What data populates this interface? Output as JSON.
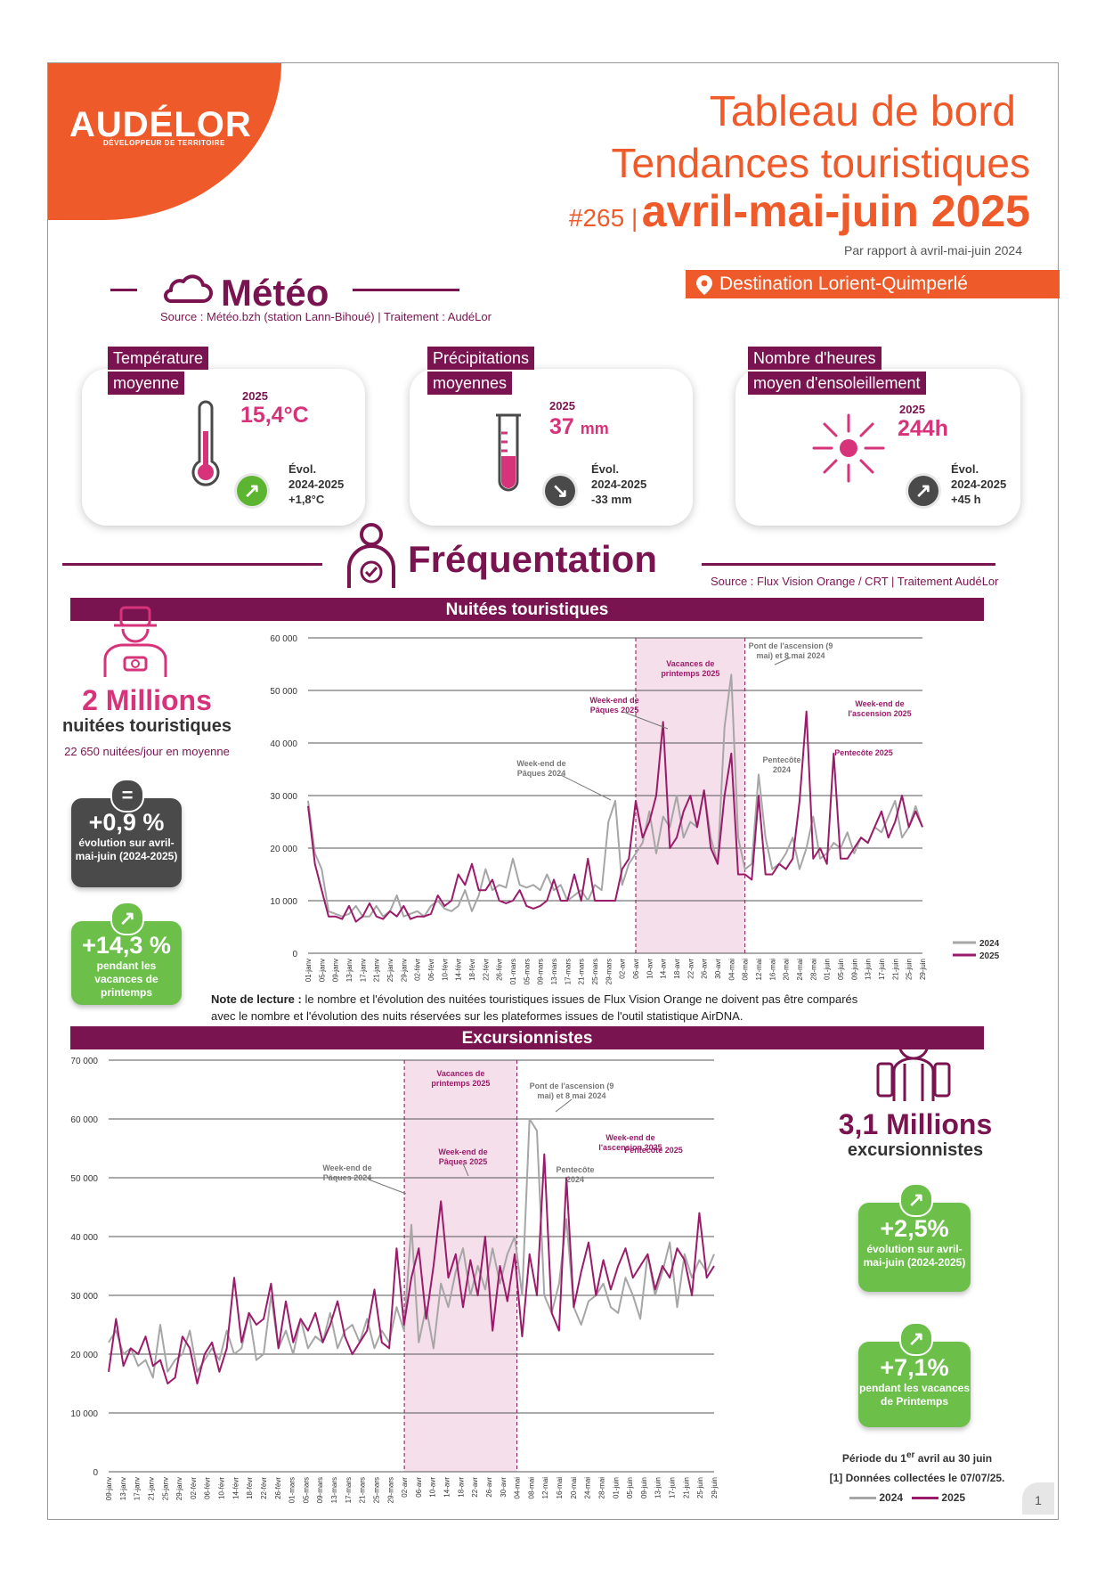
{
  "header": {
    "logo": "AUDÉLOR",
    "logo_tagline": "DÉVELOPPEUR DE TERRITOIRE",
    "title_line1": "Tableau de bord",
    "title_line2": "Tendances touristiques",
    "issue": "#265 |",
    "period": "avril-mai-juin 2025",
    "comparison": "Par rapport à avril-mai-juin 2024",
    "destination": "Destination Lorient-Quimperlé"
  },
  "meteo": {
    "title": "Météo",
    "source": "Source : Météo.bzh (station Lann-Bihoué) | Traitement : AudéLor",
    "cards": [
      {
        "tag1": "Température",
        "tag2": "moyenne",
        "year": "2025",
        "value": "15,4°C",
        "unit": "",
        "evo_label": "Évol.",
        "evo_period": "2024-2025",
        "evo_value": "+1,8°C",
        "trend": "up",
        "trend_color": "#5cb531"
      },
      {
        "tag1": "Précipitations",
        "tag2": "moyennes",
        "year": "2025",
        "value": "37",
        "unit": "mm",
        "evo_label": "Évol.",
        "evo_period": "2024-2025",
        "evo_value": "-33 mm",
        "trend": "down",
        "trend_color": "#4a4a4a"
      },
      {
        "tag1": "Nombre d'heures",
        "tag2": "moyen d'ensoleillement",
        "year": "2025",
        "value": "244h",
        "unit": "",
        "evo_label": "Évol.",
        "evo_period": "2024-2025",
        "evo_value": "+45 h",
        "trend": "up",
        "trend_color": "#4a4a4a"
      }
    ]
  },
  "frequentation": {
    "title": "Fréquentation",
    "source": "Source : Flux Vision Orange / CRT | Traitement AudéLor",
    "nuitees": {
      "band": "Nuitées touristiques",
      "total": "2 Millions",
      "total_label": "nuitées touristiques",
      "daily": "22 650 nuitées/jour en moyenne",
      "badge1": {
        "icon": "=",
        "value": "+0,9 %",
        "label": "évolution sur avril-mai-juin (2024-2025)",
        "color": "#4a4a4a"
      },
      "badge2": {
        "icon": "↗",
        "value": "+14,3 %",
        "label": "pendant les vacances de printemps",
        "color": "#6cc04a"
      }
    },
    "note_bold": "Note de lecture :",
    "note_text1": " le nombre et l'évolution des nuitées touristiques issues de Flux Vision Orange ne doivent pas être comparés",
    "note_text2": "avec le nombre et l'évolution des nuits réservées sur les plateformes issues de l'outil statistique AirDNA.",
    "excursionnistes": {
      "band": "Excursionnistes",
      "total": "3,1 Millions",
      "total_label": "excursionnistes",
      "badge1": {
        "icon": "↗",
        "value": "+2,5%",
        "label": "évolution sur avril-mai-juin (2024-2025)",
        "color": "#6cc04a"
      },
      "badge2": {
        "icon": "↗",
        "value": "+7,1%",
        "label": "pendant les vacances de Printemps",
        "color": "#6cc04a"
      },
      "period_note_a": "Période du 1",
      "period_note_sup": "er",
      "period_note_b": " avril au 30 juin",
      "data_note": "[1] Données collectées le 07/07/25."
    }
  },
  "page_number": "1",
  "chart_data": [
    {
      "type": "line",
      "title": "Nuitées touristiques",
      "ylim": [
        0,
        60000
      ],
      "yticks": [
        "0",
        "10 000",
        "20 000",
        "30 000",
        "40 000",
        "50 000",
        "60 000"
      ],
      "xticks": [
        "01-janv",
        "05-janv",
        "09-janv",
        "13-janv",
        "17-janv",
        "21-janv",
        "25-janv",
        "29-janv",
        "02-févr",
        "06-févr",
        "10-févr",
        "14-févr",
        "18-févr",
        "22-févr",
        "26-févr",
        "01-mars",
        "05-mars",
        "09-mars",
        "13-mars",
        "17-mars",
        "21-mars",
        "25-mars",
        "29-mars",
        "02-avr",
        "06-avr",
        "10-avr",
        "14-avr",
        "18-avr",
        "22-avr",
        "26-avr",
        "30-avr",
        "04-mai",
        "08-mai",
        "12-mai",
        "16-mai",
        "20-mai",
        "24-mai",
        "28-mai",
        "01-juin",
        "05-juin",
        "09-juin",
        "13-juin",
        "17-juin",
        "21-juin",
        "25-juin",
        "29-juin"
      ],
      "legend": [
        "2024",
        "2025"
      ],
      "series": [
        {
          "name": "2024",
          "color": "#a6a6a6",
          "values": [
            29000,
            19000,
            16000,
            8000,
            7500,
            7000,
            7500,
            9000,
            7000,
            7000,
            9000,
            7000,
            8000,
            11000,
            7000,
            7500,
            8000,
            7000,
            9000,
            10000,
            8500,
            8000,
            9000,
            12000,
            8000,
            11000,
            16000,
            12000,
            13000,
            12500,
            18000,
            13000,
            12500,
            13000,
            12000,
            15000,
            12000,
            13000,
            10000,
            11000,
            12000,
            10000,
            13000,
            12000,
            25000,
            29000,
            13000,
            17000,
            19000,
            21000,
            27000,
            19000,
            26000,
            24000,
            30000,
            22000,
            25000,
            24000,
            31000,
            22000,
            17000,
            43000,
            53000,
            22000,
            16000,
            17000,
            34000,
            22000,
            16000,
            17000,
            19000,
            22000,
            16000,
            20000,
            26000,
            18000,
            19000,
            21000,
            20000,
            23000,
            19000,
            22000,
            21000,
            24000,
            23000,
            26000,
            29000,
            22000,
            24000,
            28000,
            24000
          ]
        },
        {
          "name": "2025",
          "color": "#9b1b6a",
          "values": [
            28000,
            17000,
            12000,
            7000,
            7000,
            6500,
            9000,
            6000,
            7000,
            9500,
            7000,
            6500,
            8000,
            7000,
            9000,
            6500,
            7000,
            7000,
            7500,
            11000,
            9000,
            10000,
            15000,
            13000,
            17000,
            12000,
            12000,
            14000,
            10000,
            9500,
            10000,
            12000,
            9000,
            8500,
            9000,
            10000,
            14000,
            10000,
            10000,
            15000,
            10000,
            18000,
            10000,
            10000,
            10000,
            10000,
            16000,
            18000,
            29000,
            22000,
            25000,
            30000,
            44000,
            20000,
            22000,
            27000,
            30000,
            24000,
            31000,
            20000,
            17000,
            30000,
            38000,
            15000,
            15000,
            14000,
            30000,
            15000,
            15000,
            17000,
            16000,
            18000,
            29000,
            46000,
            18000,
            20000,
            17000,
            38000,
            18000,
            18000,
            20000,
            22000,
            21000,
            24000,
            27000,
            22000,
            25000,
            30000,
            24000,
            27000,
            24000
          ]
        },
        {
          "_meta": "x-axis spans Jan 1 to Jun 29, values sampled every 2 days"
        }
      ],
      "shaded_period": {
        "label": "Vacances de printemps 2025",
        "from": "05-avr",
        "to": "04-mai"
      },
      "annotations": [
        {
          "text": "Week-end de Pâques 2024",
          "series": "2024"
        },
        {
          "text": "Week-end de Pâques 2025",
          "series": "2025"
        },
        {
          "text": "Pont de l'ascension (9 mai) et 8 mai 2024",
          "series": "2024"
        },
        {
          "text": "Week-end de l'ascension 2025",
          "series": "2025"
        },
        {
          "text": "Pentecôte 2024",
          "series": "2024"
        },
        {
          "text": "Pentecôte 2025",
          "series": "2025"
        }
      ]
    },
    {
      "type": "line",
      "title": "Excursionnistes",
      "ylim": [
        0,
        70000
      ],
      "yticks": [
        "0",
        "10 000",
        "20 000",
        "30 000",
        "40 000",
        "50 000",
        "60 000",
        "70 000"
      ],
      "xticks": [
        "09-janv",
        "13-janv",
        "17-janv",
        "21-janv",
        "25-janv",
        "29-janv",
        "02-févr",
        "06-févr",
        "10-févr",
        "14-févr",
        "18-févr",
        "22-févr",
        "26-févr",
        "01-mars",
        "05-mars",
        "09-mars",
        "13-mars",
        "17-mars",
        "21-mars",
        "25-mars",
        "29-mars",
        "02-avr",
        "06-avr",
        "10-avr",
        "14-avr",
        "18-avr",
        "22-avr",
        "26-avr",
        "30-avr",
        "04-mai",
        "08-mai",
        "12-mai",
        "16-mai",
        "20-mai",
        "24-mai",
        "28-mai",
        "01-juin",
        "05-juin",
        "09-juin",
        "13-juin",
        "17-juin",
        "21-juin",
        "25-juin",
        "29-juin"
      ],
      "legend": [
        "2024",
        "2025"
      ],
      "series": [
        {
          "name": "2024",
          "color": "#a6a6a6",
          "values": [
            22000,
            24000,
            20000,
            21000,
            18000,
            19000,
            16000,
            25000,
            17000,
            19000,
            20000,
            24000,
            17000,
            19000,
            21000,
            19000,
            24000,
            20000,
            21000,
            27000,
            19000,
            20000,
            30000,
            21000,
            24000,
            20000,
            26000,
            21000,
            23000,
            22000,
            27000,
            21000,
            24000,
            25000,
            22000,
            26000,
            21000,
            24000,
            22000,
            28000,
            24000,
            42000,
            22000,
            28000,
            21000,
            32000,
            28000,
            34000,
            38000,
            30000,
            35000,
            31000,
            38000,
            32000,
            37000,
            40000,
            30000,
            60000,
            58000,
            30000,
            27000,
            32000,
            43000,
            28000,
            25000,
            29000,
            30000,
            32000,
            28000,
            27000,
            33000,
            30000,
            26000,
            37000,
            30000,
            34000,
            39000,
            28000,
            37000,
            33000,
            36000,
            34000,
            37000
          ]
        },
        {
          "name": "2025",
          "color": "#9b1b6a",
          "values": [
            17000,
            26000,
            18000,
            21000,
            20000,
            23000,
            18000,
            19000,
            15000,
            16000,
            23000,
            21000,
            15000,
            20000,
            22000,
            17000,
            21000,
            33000,
            22000,
            27000,
            25000,
            26000,
            32000,
            21000,
            29000,
            22000,
            26000,
            24000,
            27000,
            22000,
            25000,
            29000,
            23000,
            20000,
            22000,
            24000,
            31000,
            22000,
            21000,
            38000,
            25000,
            33000,
            38000,
            26000,
            35000,
            46000,
            33000,
            37000,
            28000,
            36000,
            30000,
            40000,
            24000,
            35000,
            29000,
            37000,
            23000,
            37000,
            30000,
            54000,
            27000,
            24000,
            50000,
            28000,
            34000,
            39000,
            30000,
            36000,
            31000,
            35000,
            38000,
            33000,
            35000,
            37000,
            31000,
            35000,
            33000,
            38000,
            36000,
            30000,
            44000,
            33000,
            35000
          ]
        },
        {
          "_meta": "x-axis spans Jan 5 to Jun 29, values sampled every 2 days"
        }
      ],
      "shaded_period": {
        "label": "Vacances de printemps 2025",
        "from": "05-avr",
        "to": "04-mai"
      },
      "annotations": [
        {
          "text": "Week-end de Pâques 2024",
          "series": "2024"
        },
        {
          "text": "Week-end de Pâques 2025",
          "series": "2025"
        },
        {
          "text": "Pont de l'ascension (9 mai) et 8 mai 2024",
          "series": "2024"
        },
        {
          "text": "Week-end de l'ascension 2025",
          "series": "2025"
        },
        {
          "text": "Pentecôte 2024",
          "series": "2024"
        },
        {
          "text": "Pentecôte 2025",
          "series": "2025"
        }
      ]
    }
  ]
}
